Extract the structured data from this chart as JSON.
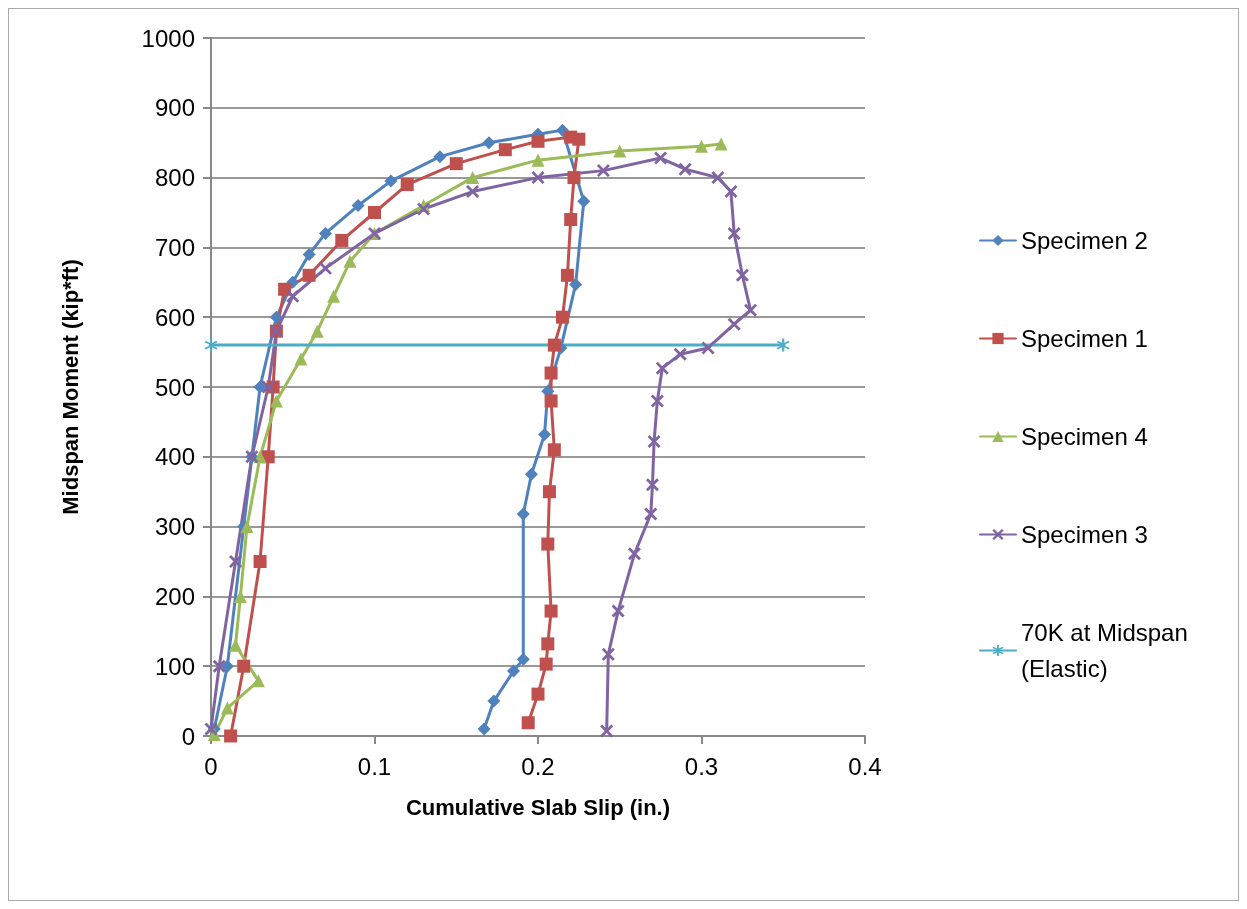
{
  "chart_data": {
    "type": "line",
    "xlabel": "Cumulative Slab Slip (in.)",
    "ylabel": "Midspan Moment (kip*ft)",
    "xlim": [
      0,
      0.4
    ],
    "xticks": [
      0,
      0.1,
      0.2,
      0.3,
      0.4
    ],
    "ylim": [
      0,
      1000
    ],
    "yticks": [
      0,
      100,
      200,
      300,
      400,
      500,
      600,
      700,
      800,
      900,
      1000
    ],
    "grid": "y",
    "legend": "right",
    "line_style": "solid",
    "series": [
      {
        "name": "Specimen 2",
        "color": "#4f81bd",
        "marker": "diamond",
        "x": [
          0.002,
          0.01,
          0.02,
          0.025,
          0.03,
          0.04,
          0.05,
          0.06,
          0.07,
          0.09,
          0.11,
          0.14,
          0.17,
          0.2,
          0.215,
          0.228,
          0.223,
          0.214,
          0.206,
          0.204,
          0.196,
          0.191,
          0.191,
          0.185,
          0.173,
          0.167
        ],
        "values": [
          10,
          100,
          300,
          400,
          500,
          600,
          650,
          690,
          720,
          760,
          795,
          830,
          850,
          862,
          868,
          766,
          647,
          556,
          494,
          432,
          375,
          318,
          110,
          93,
          50,
          10
        ]
      },
      {
        "name": "Specimen 1",
        "color": "#c0504d",
        "marker": "square",
        "x": [
          0.012,
          0.02,
          0.03,
          0.035,
          0.038,
          0.04,
          0.045,
          0.06,
          0.08,
          0.1,
          0.12,
          0.15,
          0.18,
          0.2,
          0.22,
          0.225,
          0.222,
          0.22,
          0.218,
          0.215,
          0.21,
          0.208,
          0.208,
          0.21,
          0.207,
          0.206,
          0.208,
          0.206,
          0.205,
          0.2,
          0.194
        ],
        "values": [
          0,
          100,
          250,
          400,
          500,
          580,
          640,
          660,
          710,
          750,
          790,
          820,
          840,
          852,
          858,
          855,
          800,
          740,
          660,
          600,
          560,
          520,
          480,
          410,
          350,
          275,
          179,
          132,
          103,
          60,
          19
        ]
      },
      {
        "name": "Specimen 4",
        "color": "#9bbb59",
        "marker": "triangle",
        "x": [
          0.002,
          0.01,
          0.029,
          0.015,
          0.018,
          0.022,
          0.03,
          0.04,
          0.055,
          0.065,
          0.075,
          0.085,
          0.1,
          0.13,
          0.16,
          0.2,
          0.25,
          0.3,
          0.312
        ],
        "values": [
          2,
          40,
          79,
          130,
          200,
          300,
          400,
          480,
          540,
          580,
          630,
          680,
          720,
          760,
          800,
          825,
          838,
          845,
          848
        ]
      },
      {
        "name": "Specimen 3",
        "color": "#8064a2",
        "marker": "cross",
        "x": [
          0.0,
          0.005,
          0.015,
          0.025,
          0.035,
          0.04,
          0.05,
          0.07,
          0.1,
          0.13,
          0.16,
          0.2,
          0.24,
          0.275,
          0.29,
          0.31,
          0.318,
          0.32,
          0.325,
          0.33,
          0.32,
          0.304,
          0.287,
          0.276,
          0.273,
          0.271,
          0.27,
          0.269,
          0.259,
          0.249,
          0.243,
          0.242
        ],
        "values": [
          10,
          100,
          250,
          400,
          500,
          580,
          630,
          670,
          720,
          755,
          780,
          800,
          810,
          828,
          812,
          800,
          780,
          720,
          660,
          610,
          590,
          556,
          547,
          527,
          480,
          422,
          360,
          318,
          261,
          179,
          117,
          7
        ]
      },
      {
        "name": "70K at Midspan (Elastic)",
        "color": "#4bacc6",
        "marker": "star",
        "x": [
          0,
          0.35
        ],
        "values": [
          560,
          560
        ]
      }
    ]
  }
}
